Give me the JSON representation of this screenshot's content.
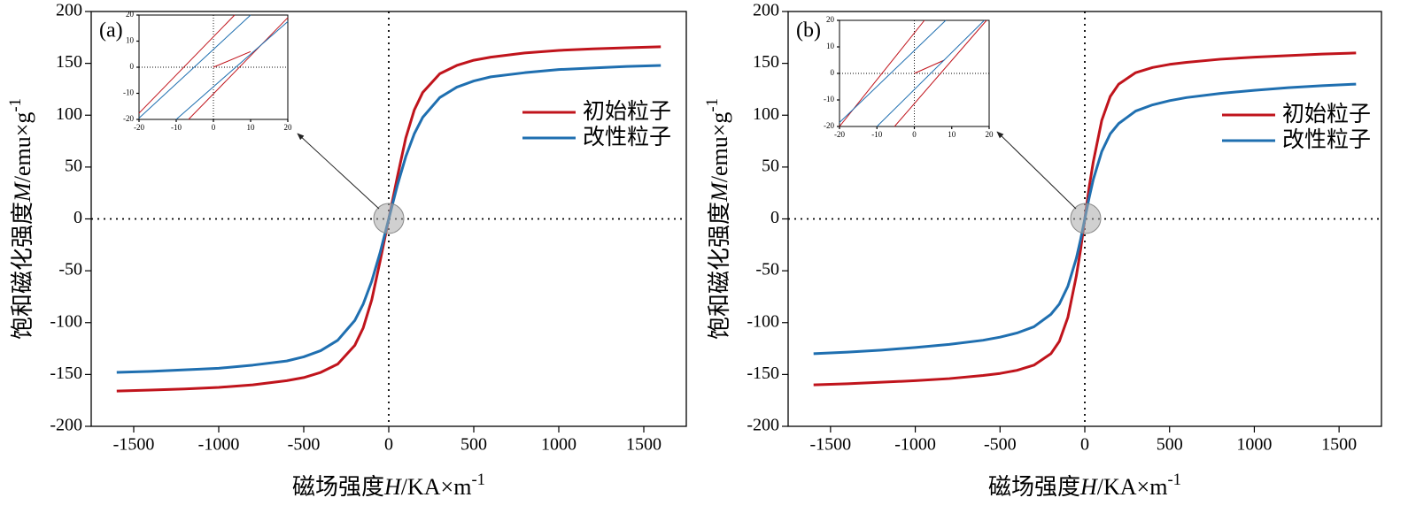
{
  "chart_data": [
    {
      "type": "line",
      "label": "(a)",
      "x_label": {
        "text": "磁场强度",
        "var": "H",
        "unit": "/KA×m",
        "exp": "-1"
      },
      "y_label": {
        "text": "饱和磁化强度",
        "var": "M",
        "unit": "/emu×g",
        "exp": "-1"
      },
      "x": [
        -1600,
        -1400,
        -1200,
        -1000,
        -800,
        -600,
        -500,
        -400,
        -300,
        -200,
        -150,
        -100,
        -50,
        -25,
        0,
        25,
        50,
        100,
        150,
        200,
        300,
        400,
        500,
        600,
        800,
        1000,
        1200,
        1400,
        1600
      ],
      "xlim": [
        -1750,
        1750
      ],
      "xticks": [
        -1500,
        -1000,
        -500,
        0,
        500,
        1000,
        1500
      ],
      "ylim": [
        -200,
        200
      ],
      "yticks": [
        -200,
        -150,
        -100,
        -50,
        0,
        50,
        100,
        150,
        200
      ],
      "legend": "right",
      "series": [
        {
          "name": "初始粒子",
          "color": "#c0141c",
          "values": [
            -166,
            -165,
            -164,
            -162.5,
            -160,
            -156,
            -153,
            -148,
            -140,
            -122,
            -105,
            -78,
            -40,
            -20,
            0,
            20,
            40,
            78,
            105,
            122,
            140,
            148,
            153,
            156,
            160,
            162.5,
            164,
            165,
            166
          ]
        },
        {
          "name": "改性粒子",
          "color": "#1f6fb0",
          "values": [
            -148,
            -147,
            -145.5,
            -144,
            -141,
            -137,
            -133,
            -127,
            -117,
            -98,
            -82,
            -60,
            -32,
            -16,
            0,
            16,
            32,
            60,
            82,
            98,
            117,
            127,
            133,
            137,
            141,
            144,
            145.5,
            147,
            148
          ]
        }
      ],
      "inset": {
        "type": "line",
        "xlim": [
          -20,
          20
        ],
        "xticks": [
          -20,
          -10,
          0,
          10,
          20
        ],
        "ylim": [
          -20,
          20
        ],
        "yticks": [
          -20,
          -10,
          0,
          10,
          20
        ],
        "series": [
          {
            "color": "#c0141c",
            "x": [
              -20,
              5.7
            ],
            "values": [
              -17.6,
              20
            ]
          },
          {
            "color": "#c0141c",
            "x": [
              -6.7,
              20
            ],
            "values": [
              -20,
              19
            ]
          },
          {
            "color": "#c0141c",
            "x": [
              0,
              10
            ],
            "values": [
              0,
              6
            ]
          },
          {
            "color": "#1f6fb0",
            "x": [
              -20,
              10
            ],
            "values": [
              -19.5,
              20
            ]
          },
          {
            "color": "#1f6fb0",
            "x": [
              -10,
              20
            ],
            "values": [
              -20,
              17.5
            ]
          }
        ]
      }
    },
    {
      "type": "line",
      "label": "(b)",
      "x_label": {
        "text": "磁场强度",
        "var": "H",
        "unit": "/KA×m",
        "exp": "-1"
      },
      "y_label": {
        "text": "饱和磁化强度",
        "var": "M",
        "unit": "/emu×g",
        "exp": "-1"
      },
      "x": [
        -1600,
        -1400,
        -1200,
        -1000,
        -800,
        -600,
        -500,
        -400,
        -300,
        -200,
        -150,
        -100,
        -50,
        -25,
        0,
        25,
        50,
        100,
        150,
        200,
        300,
        400,
        500,
        600,
        800,
        1000,
        1200,
        1400,
        1600
      ],
      "xlim": [
        -1750,
        1750
      ],
      "xticks": [
        -1500,
        -1000,
        -500,
        0,
        500,
        1000,
        1500
      ],
      "ylim": [
        -200,
        200
      ],
      "yticks": [
        -200,
        -150,
        -100,
        -50,
        0,
        50,
        100,
        150,
        200
      ],
      "legend": "right",
      "series": [
        {
          "name": "初始粒子",
          "color": "#c0141c",
          "values": [
            -160,
            -159,
            -157.5,
            -156,
            -154,
            -151,
            -149,
            -146,
            -141,
            -130,
            -118,
            -95,
            -55,
            -30,
            0,
            30,
            55,
            95,
            118,
            130,
            141,
            146,
            149,
            151,
            154,
            156,
            157.5,
            159,
            160
          ]
        },
        {
          "name": "改性粒子",
          "color": "#1f6fb0",
          "values": [
            -130,
            -128.5,
            -126.5,
            -124,
            -121,
            -117,
            -114,
            -110,
            -104,
            -92,
            -82,
            -65,
            -38,
            -20,
            0,
            20,
            38,
            65,
            82,
            92,
            104,
            110,
            114,
            117,
            121,
            124,
            126.5,
            128.5,
            130
          ]
        }
      ],
      "inset": {
        "type": "line",
        "xlim": [
          -20,
          20
        ],
        "xticks": [
          -20,
          -10,
          0,
          10,
          20
        ],
        "ylim": [
          -20,
          20
        ],
        "yticks": [
          -20,
          -10,
          0,
          10,
          20
        ],
        "series": [
          {
            "color": "#c0141c",
            "x": [
              -20,
              2.7
            ],
            "values": [
              -20,
              20
            ]
          },
          {
            "color": "#c0141c",
            "x": [
              -5.3,
              19.3
            ],
            "values": [
              -20,
              20
            ]
          },
          {
            "color": "#c0141c",
            "x": [
              0,
              8
            ],
            "values": [
              0,
              5
            ]
          },
          {
            "color": "#1f6fb0",
            "x": [
              -20,
              8.4
            ],
            "values": [
              -18.5,
              20
            ]
          },
          {
            "color": "#1f6fb0",
            "x": [
              -10,
              18.7
            ],
            "values": [
              -20,
              20
            ]
          }
        ]
      }
    }
  ]
}
